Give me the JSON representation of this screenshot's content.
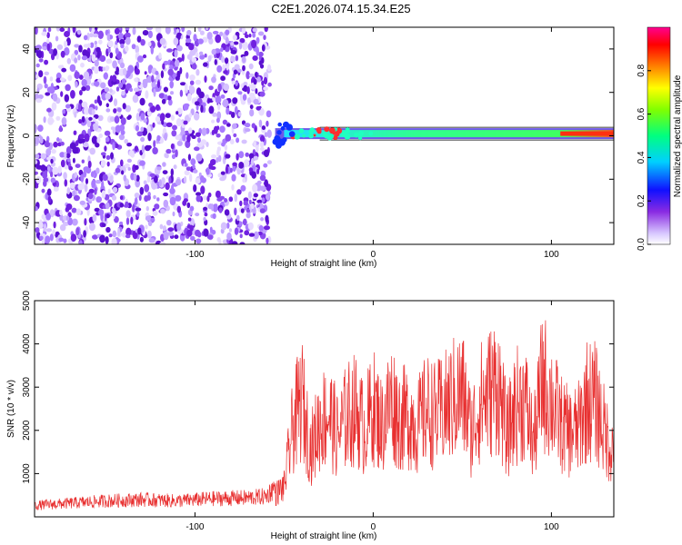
{
  "title": "C2E1.2026.074.15.34.E25",
  "chart_data": [
    {
      "type": "heatmap",
      "xlabel": "Height of straight line (km)",
      "ylabel": "Frequency (Hz)",
      "xlim": [
        -190,
        135
      ],
      "ylim": [
        -50,
        50
      ],
      "xticks": [
        "-100",
        "0",
        "100"
      ],
      "yticks": [
        "-40",
        "-20",
        "0",
        "20",
        "40"
      ],
      "colorbar": {
        "label": "Normalized spectral amplitude",
        "ticks": [
          "0.0",
          "0.2",
          "0.4",
          "0.6",
          "0.8"
        ],
        "range": [
          0,
          1
        ]
      },
      "regions": [
        {
          "x_range": [
            -190,
            -58
          ],
          "freq_range": [
            -50,
            50
          ],
          "amplitude": 0.15,
          "note": "broadband noise"
        },
        {
          "x_range": [
            -55,
            135
          ],
          "freq_center": 1,
          "amplitude": 0.55,
          "note": "narrow band near 0 Hz"
        }
      ]
    },
    {
      "type": "line",
      "xlabel": "Height of straight line (km)",
      "ylabel": "SNR (10 * v/v)",
      "xlim": [
        -190,
        135
      ],
      "ylim": [
        0,
        5000
      ],
      "xticks": [
        "-100",
        "0",
        "100"
      ],
      "yticks": [
        "1000",
        "2000",
        "3000",
        "4000",
        "5000"
      ],
      "x": [
        -190,
        -170,
        -150,
        -130,
        -110,
        -90,
        -70,
        -60,
        -50,
        -45,
        -40,
        -35,
        -30,
        -25,
        -20,
        -15,
        -10,
        -5,
        0,
        5,
        10,
        15,
        20,
        25,
        30,
        35,
        40,
        45,
        50,
        55,
        60,
        65,
        70,
        75,
        80,
        85,
        90,
        95,
        100,
        105,
        110,
        115,
        120,
        125,
        130,
        135
      ],
      "values": [
        250,
        300,
        350,
        380,
        350,
        400,
        420,
        450,
        900,
        2700,
        3500,
        2000,
        2800,
        3100,
        2400,
        3000,
        3200,
        2600,
        3300,
        2700,
        3500,
        2900,
        3000,
        2700,
        3200,
        3000,
        3200,
        3500,
        3700,
        2500,
        3400,
        3700,
        4000,
        2400,
        3300,
        3500,
        2200,
        4100,
        3500,
        2800,
        2500,
        2600,
        3500,
        3400,
        2500,
        1900
      ]
    }
  ]
}
